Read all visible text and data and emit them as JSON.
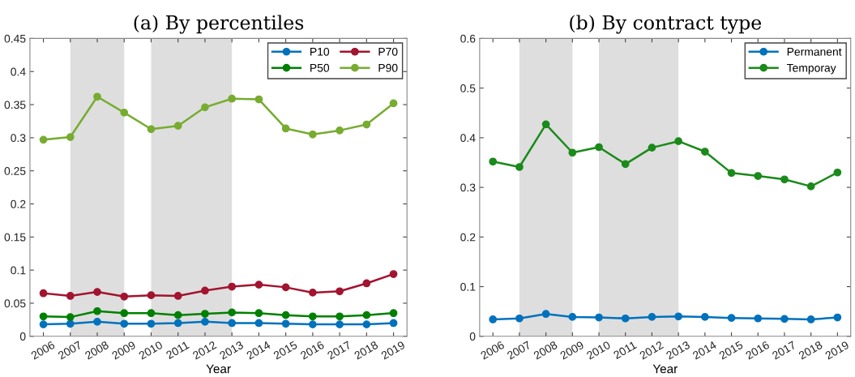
{
  "chart_data": [
    {
      "type": "line",
      "title": "(a) By percentiles",
      "xlabel": "Year",
      "x": [
        2006,
        2007,
        2008,
        2009,
        2010,
        2011,
        2012,
        2013,
        2014,
        2015,
        2016,
        2017,
        2018,
        2019
      ],
      "xlim": [
        2005.5,
        2019.5
      ],
      "xticks": [
        2006,
        2007,
        2008,
        2009,
        2010,
        2011,
        2012,
        2013,
        2014,
        2015,
        2016,
        2017,
        2018,
        2019
      ],
      "ylim": [
        0,
        0.45
      ],
      "yticks": [
        0,
        0.05,
        0.1,
        0.15,
        0.2,
        0.25,
        0.3,
        0.35,
        0.4,
        0.45
      ],
      "series": [
        {
          "name": "P10",
          "color": "#0072bd",
          "values": [
            0.018,
            0.019,
            0.022,
            0.019,
            0.019,
            0.02,
            0.022,
            0.02,
            0.02,
            0.019,
            0.018,
            0.018,
            0.018,
            0.02
          ]
        },
        {
          "name": "P50",
          "color": "#008000",
          "values": [
            0.03,
            0.029,
            0.038,
            0.035,
            0.035,
            0.032,
            0.034,
            0.036,
            0.035,
            0.032,
            0.03,
            0.03,
            0.032,
            0.035
          ]
        },
        {
          "name": "P70",
          "color": "#a2142f",
          "values": [
            0.065,
            0.061,
            0.067,
            0.06,
            0.062,
            0.061,
            0.069,
            0.075,
            0.078,
            0.074,
            0.066,
            0.068,
            0.08,
            0.094
          ]
        },
        {
          "name": "P90",
          "color": "#77ac30",
          "values": [
            0.297,
            0.301,
            0.362,
            0.338,
            0.313,
            0.318,
            0.346,
            0.359,
            0.358,
            0.314,
            0.305,
            0.311,
            0.32,
            0.352
          ]
        }
      ],
      "bands": [
        {
          "axis": "x",
          "from": 2007,
          "to": 2009,
          "color": "#dedede"
        },
        {
          "axis": "x",
          "from": 2010,
          "to": 2013,
          "color": "#dedede"
        }
      ],
      "legend": "top right",
      "grid": false,
      "marker": "circle",
      "line_style": "solid"
    },
    {
      "type": "line",
      "title": "(b) By contract type",
      "xlabel": "Year",
      "x": [
        2006,
        2007,
        2008,
        2009,
        2010,
        2011,
        2012,
        2013,
        2014,
        2015,
        2016,
        2017,
        2018,
        2019
      ],
      "xlim": [
        2005.5,
        2019.5
      ],
      "xticks": [
        2006,
        2007,
        2008,
        2009,
        2010,
        2011,
        2012,
        2013,
        2014,
        2015,
        2016,
        2017,
        2018,
        2019
      ],
      "ylim": [
        0,
        0.6
      ],
      "yticks": [
        0,
        0.1,
        0.2,
        0.3,
        0.4,
        0.5,
        0.6
      ],
      "series": [
        {
          "name": "Permanent",
          "color": "#0072bd",
          "values": [
            0.034,
            0.036,
            0.045,
            0.039,
            0.038,
            0.036,
            0.039,
            0.04,
            0.039,
            0.037,
            0.036,
            0.035,
            0.034,
            0.038
          ]
        },
        {
          "name": "Temporay",
          "color": "#1a8a1a",
          "values": [
            0.352,
            0.341,
            0.427,
            0.37,
            0.381,
            0.347,
            0.38,
            0.393,
            0.372,
            0.329,
            0.323,
            0.316,
            0.302,
            0.33
          ]
        }
      ],
      "bands": [
        {
          "axis": "x",
          "from": 2007,
          "to": 2009,
          "color": "#dedede"
        },
        {
          "axis": "x",
          "from": 2010,
          "to": 2013,
          "color": "#dedede"
        }
      ],
      "legend": "top right",
      "grid": false,
      "marker": "circle",
      "line_style": "solid"
    }
  ]
}
